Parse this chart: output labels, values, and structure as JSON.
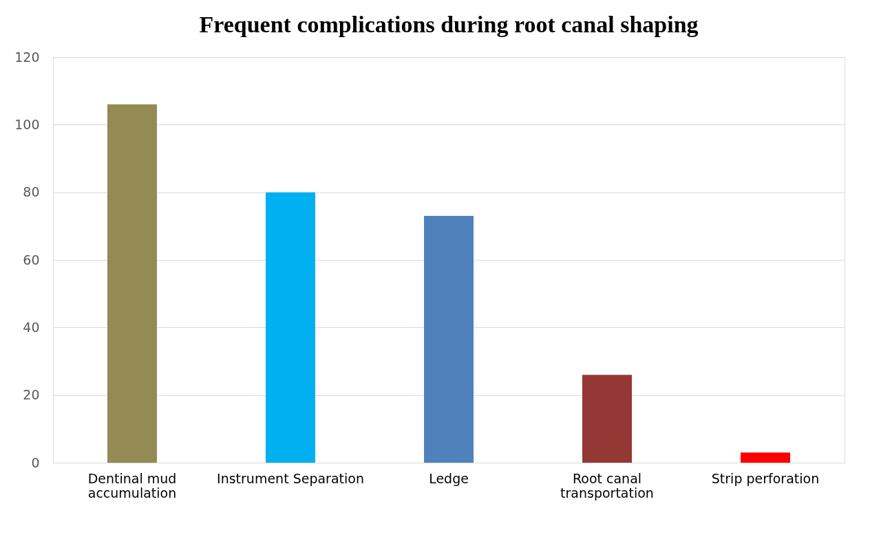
{
  "chart_data": {
    "type": "bar",
    "title": "Frequent complications during root canal shaping",
    "categories": [
      "Dentinal mud accumulation",
      "Instrument Separation",
      "Ledge",
      "Root canal transportation",
      "Strip perforation"
    ],
    "values": [
      106,
      80,
      73,
      26,
      3
    ],
    "colors": [
      "#948a54",
      "#00b0f0",
      "#4f81bd",
      "#953735",
      "#ff0000"
    ],
    "ylim": [
      0,
      120
    ],
    "yticks": [
      0,
      20,
      40,
      60,
      80,
      100,
      120
    ],
    "grid": "y",
    "legend": false
  }
}
